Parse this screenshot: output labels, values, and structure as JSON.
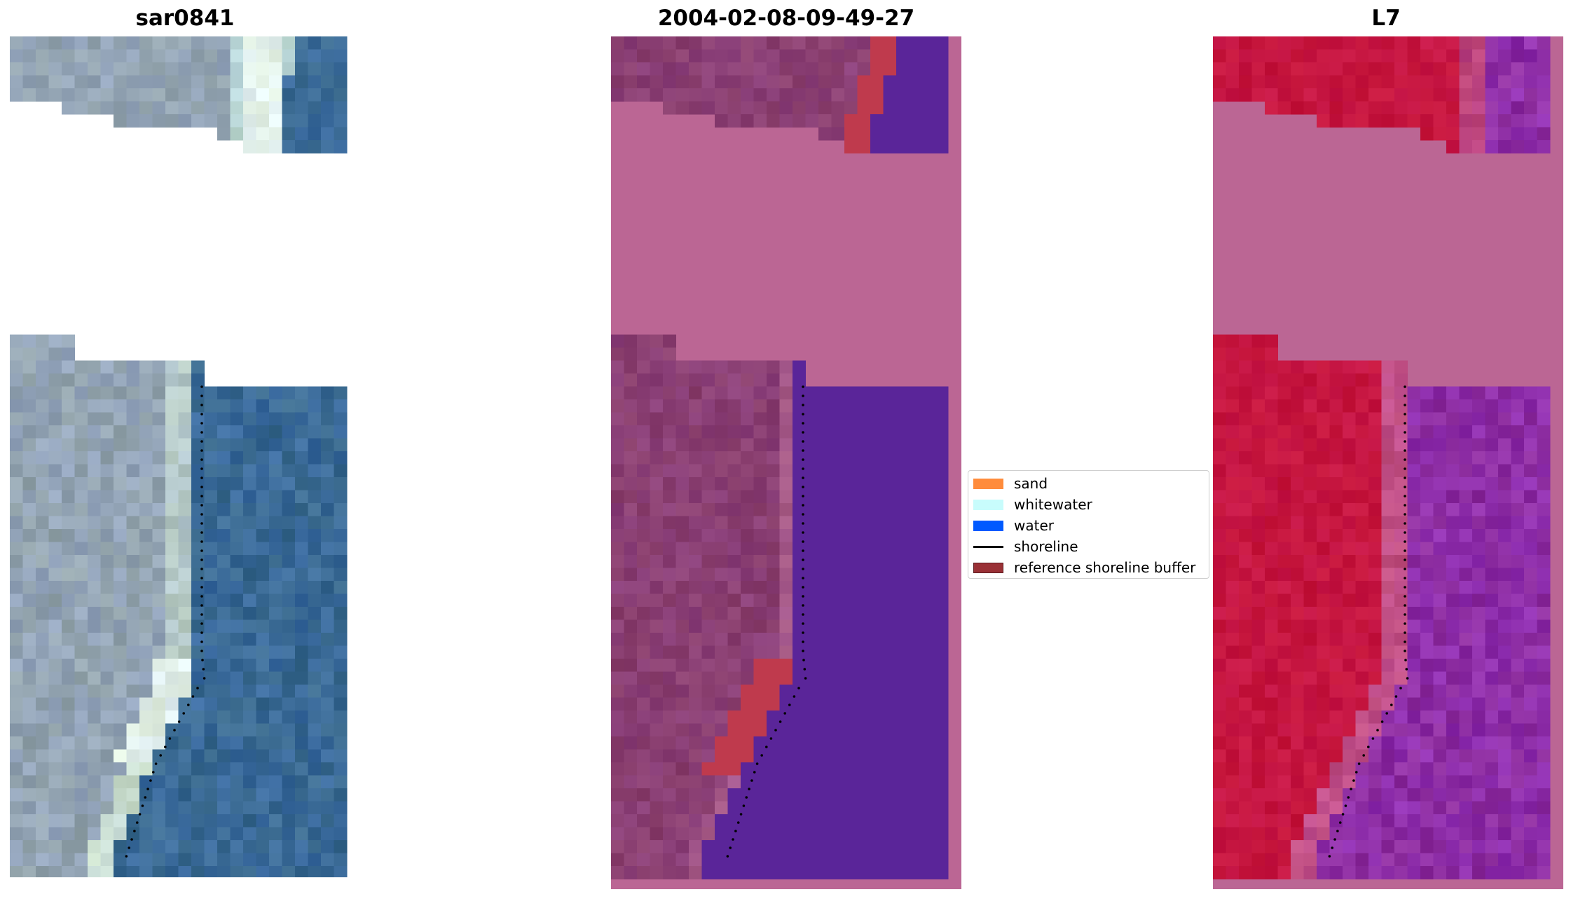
{
  "panels": [
    {
      "title": "sar0841"
    },
    {
      "title": "2004-02-08-09-49-27"
    },
    {
      "title": "L7"
    }
  ],
  "legend": {
    "items": [
      {
        "label": "sand",
        "color": "#ff8c3c",
        "type": "patch"
      },
      {
        "label": "whitewater",
        "color": "#c8fcfc",
        "type": "patch"
      },
      {
        "label": "water",
        "color": "#005aff",
        "type": "patch"
      },
      {
        "label": "shoreline",
        "color": "#000000",
        "type": "line"
      },
      {
        "label": "reference shoreline buffer",
        "color": "#9a3136",
        "type": "patch"
      }
    ]
  },
  "colors": {
    "nodata_pink": "#bb6694",
    "land_purple": "#8a3f73",
    "water_indigo": "#5a2599",
    "buffer_red": "#bf3a4d",
    "l7_red": "#c51540",
    "l7_purple": "#8d2da6",
    "rgb_water": "#3a6a96",
    "rgb_land": "#93a4b4",
    "rgb_surf": "#e4f2ec"
  }
}
